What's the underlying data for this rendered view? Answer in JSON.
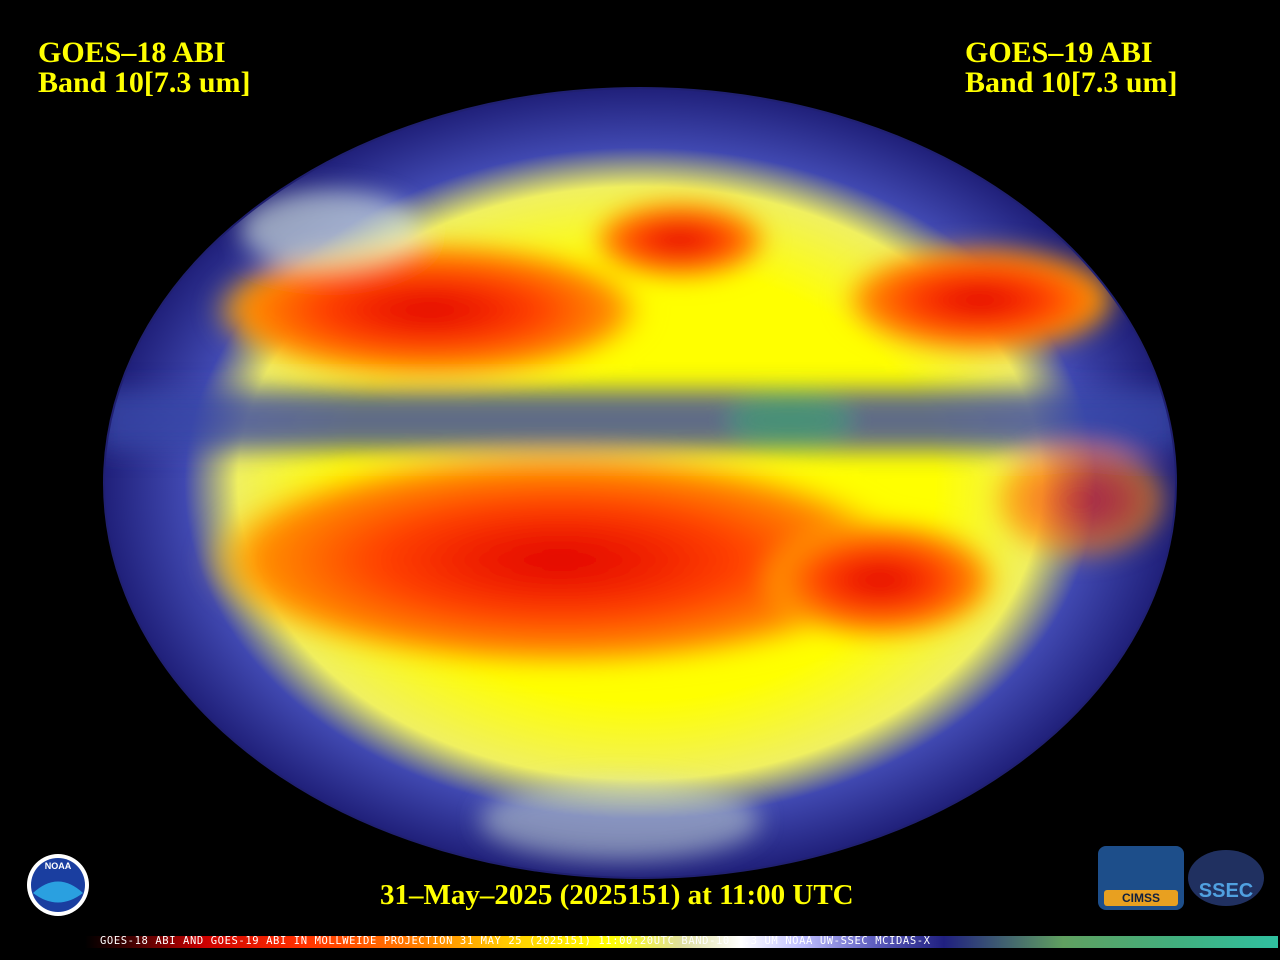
{
  "left_label": {
    "line1": "GOES–18 ABI",
    "line2": "Band 10[7.3 um]"
  },
  "right_label": {
    "line1": "GOES–19 ABI",
    "line2": "Band 10[7.3 um]"
  },
  "timestamp": "31–May–2025 (2025151) at 11:00 UTC",
  "footer": "GOES-18 ABI AND GOES-19 ABI IN MOLLWEIDE PROJECTION 31 MAY 25 (2025151) 11:00:20UTC BAND-10 7.3 UM NOAA UW-SSEC MCIDAS-X",
  "logos": {
    "noaa": "NOAA",
    "cimss": "CIMSS",
    "ssec": "SSEC"
  }
}
